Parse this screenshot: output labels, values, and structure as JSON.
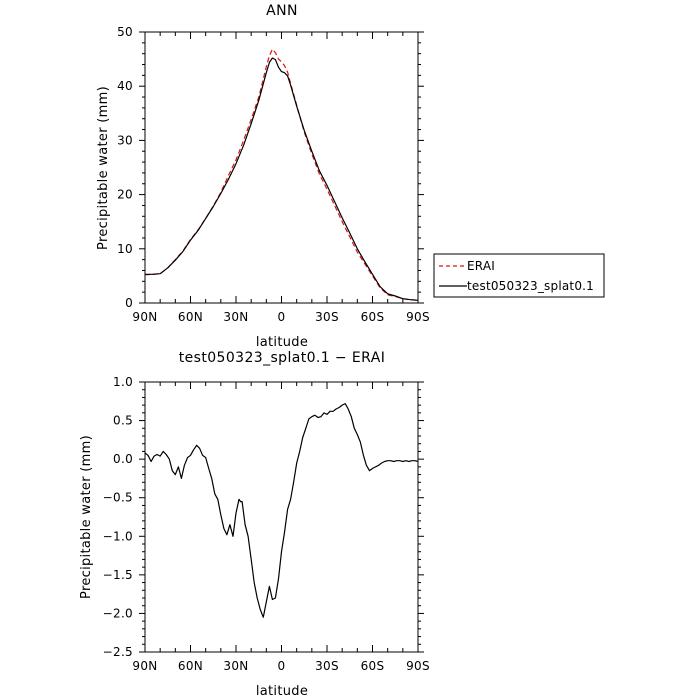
{
  "chart_data": [
    {
      "type": "line",
      "title": "ANN",
      "xlabel": "latitude",
      "ylabel": "Precipitable water (mm)",
      "xlim": [
        90,
        -90
      ],
      "ylim": [
        0,
        50
      ],
      "xticks": [
        90,
        60,
        30,
        0,
        -30,
        -60,
        -90
      ],
      "xtick_labels": [
        "90N",
        "60N",
        "30N",
        "0",
        "30S",
        "60S",
        "90S"
      ],
      "yticks": [
        0,
        10,
        20,
        30,
        40,
        50
      ],
      "ytick_labels": [
        "0",
        "10",
        "20",
        "30",
        "40",
        "50"
      ],
      "legend_position": "right",
      "series": [
        {
          "name": "ERAI",
          "color": "#dd1111",
          "dash": "dashed",
          "x": [
            90,
            85,
            80,
            75,
            70,
            65,
            60,
            55,
            50,
            45,
            40,
            35,
            30,
            25,
            20,
            15,
            10,
            8,
            6,
            4,
            2,
            0,
            -2,
            -4,
            -6,
            -10,
            -15,
            -20,
            -25,
            -30,
            -35,
            -40,
            -45,
            -50,
            -55,
            -60,
            -65,
            -70,
            -75,
            -80,
            -85,
            -90
          ],
          "values": [
            5.2,
            5.3,
            5.4,
            6.5,
            8.0,
            9.6,
            11.7,
            13.5,
            15.6,
            17.9,
            20.4,
            23.5,
            26.4,
            30.0,
            33.9,
            38.0,
            43.6,
            45.6,
            46.8,
            46.2,
            45.0,
            44.5,
            43.8,
            42.6,
            40.5,
            36.5,
            31.5,
            27.5,
            23.8,
            21.0,
            18.0,
            15.0,
            12.2,
            9.4,
            7.2,
            5.0,
            2.8,
            1.5,
            1.2,
            0.8,
            0.6,
            0.5
          ]
        },
        {
          "name": "test050323_splat0.1",
          "color": "#000000",
          "dash": "solid",
          "x": [
            90,
            85,
            80,
            75,
            70,
            65,
            60,
            55,
            50,
            45,
            40,
            35,
            30,
            25,
            20,
            15,
            10,
            8,
            6,
            4,
            2,
            0,
            -2,
            -4,
            -6,
            -10,
            -15,
            -20,
            -25,
            -30,
            -35,
            -40,
            -45,
            -50,
            -55,
            -60,
            -65,
            -70,
            -75,
            -80,
            -85,
            -90
          ],
          "values": [
            5.3,
            5.3,
            5.4,
            6.5,
            7.9,
            9.5,
            11.6,
            13.4,
            15.6,
            17.8,
            20.2,
            22.8,
            25.7,
            29.1,
            33.1,
            37.4,
            42.5,
            44.4,
            45.2,
            44.9,
            43.5,
            42.7,
            42.5,
            41.9,
            40.2,
            36.3,
            31.8,
            28.0,
            24.4,
            21.7,
            18.7,
            15.7,
            12.9,
            10.0,
            7.6,
            5.3,
            3.0,
            1.7,
            1.3,
            0.8,
            0.6,
            0.5
          ]
        }
      ]
    },
    {
      "type": "line",
      "title": "test050323_splat0.1 − ERAI",
      "xlabel": "latitude",
      "ylabel": "Precipitable water (mm)",
      "xlim": [
        90,
        -90
      ],
      "ylim": [
        -2.5,
        1.0
      ],
      "xticks": [
        90,
        60,
        30,
        0,
        -30,
        -60,
        -90
      ],
      "xtick_labels": [
        "90N",
        "60N",
        "30N",
        "0",
        "30S",
        "60S",
        "90S"
      ],
      "yticks": [
        1.0,
        0.5,
        0.0,
        -0.5,
        -1.0,
        -1.5,
        -2.0,
        -2.5
      ],
      "ytick_labels": [
        "1.0",
        "0.5",
        "0.0",
        "−0.5",
        "−1.0",
        "−1.5",
        "−2.0",
        "−2.5"
      ],
      "series": [
        {
          "name": "",
          "color": "#000000",
          "dash": "solid",
          "x": [
            90,
            88,
            86,
            84,
            82,
            80,
            78,
            76,
            74,
            72,
            70,
            68,
            66,
            64,
            62,
            60,
            58,
            56,
            54,
            52,
            50,
            48,
            46,
            44,
            42,
            40,
            38,
            36,
            34,
            32,
            30,
            28,
            27,
            26,
            24,
            22,
            20,
            18,
            16,
            14,
            12,
            10,
            8,
            6,
            4,
            2,
            0,
            -2,
            -4,
            -6,
            -8,
            -10,
            -12,
            -14,
            -16,
            -18,
            -20,
            -22,
            -24,
            -26,
            -28,
            -30,
            -32,
            -34,
            -36,
            -38,
            -40,
            -42,
            -44,
            -46,
            -48,
            -50,
            -52,
            -54,
            -56,
            -58,
            -60,
            -62,
            -64,
            -66,
            -68,
            -70,
            -72,
            -74,
            -76,
            -78,
            -80,
            -82,
            -84,
            -86,
            -88,
            -90
          ],
          "values": [
            0.08,
            0.05,
            -0.03,
            0.04,
            0.06,
            0.04,
            0.1,
            0.06,
            0.0,
            -0.15,
            -0.2,
            -0.1,
            -0.25,
            -0.08,
            0.02,
            0.05,
            0.12,
            0.18,
            0.14,
            0.05,
            0.02,
            -0.12,
            -0.25,
            -0.45,
            -0.52,
            -0.72,
            -0.9,
            -0.98,
            -0.85,
            -1.0,
            -0.7,
            -0.52,
            -0.55,
            -0.55,
            -0.85,
            -1.0,
            -1.3,
            -1.6,
            -1.8,
            -1.95,
            -2.05,
            -1.85,
            -1.65,
            -1.82,
            -1.8,
            -1.55,
            -1.2,
            -0.95,
            -0.65,
            -0.52,
            -0.3,
            -0.05,
            0.1,
            0.28,
            0.4,
            0.52,
            0.55,
            0.57,
            0.54,
            0.55,
            0.6,
            0.58,
            0.62,
            0.62,
            0.65,
            0.67,
            0.7,
            0.72,
            0.65,
            0.55,
            0.4,
            0.32,
            0.22,
            0.05,
            -0.08,
            -0.15,
            -0.12,
            -0.1,
            -0.08,
            -0.05,
            -0.03,
            -0.02,
            -0.02,
            -0.03,
            -0.02,
            -0.02,
            -0.03,
            -0.02,
            -0.03,
            -0.02,
            -0.02,
            -0.03
          ]
        }
      ]
    }
  ]
}
